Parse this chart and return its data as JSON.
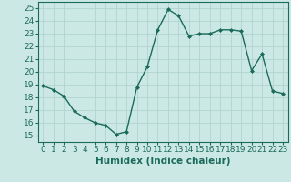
{
  "x": [
    0,
    1,
    2,
    3,
    4,
    5,
    6,
    7,
    8,
    9,
    10,
    11,
    12,
    13,
    14,
    15,
    16,
    17,
    18,
    19,
    20,
    21,
    22,
    23
  ],
  "y": [
    18.9,
    18.6,
    18.1,
    16.9,
    16.4,
    16.0,
    15.8,
    15.1,
    15.3,
    18.8,
    20.4,
    23.3,
    24.9,
    24.4,
    22.8,
    23.0,
    23.0,
    23.3,
    23.3,
    23.2,
    20.1,
    21.4,
    18.5,
    18.3
  ],
  "line_color": "#1a6b5a",
  "marker": "D",
  "marker_size": 2.0,
  "linewidth": 1.0,
  "xlabel": "Humidex (Indice chaleur)",
  "xlim": [
    -0.5,
    23.5
  ],
  "ylim": [
    14.5,
    25.5
  ],
  "yticks": [
    15,
    16,
    17,
    18,
    19,
    20,
    21,
    22,
    23,
    24,
    25
  ],
  "xticks": [
    0,
    1,
    2,
    3,
    4,
    5,
    6,
    7,
    8,
    9,
    10,
    11,
    12,
    13,
    14,
    15,
    16,
    17,
    18,
    19,
    20,
    21,
    22,
    23
  ],
  "xtick_labels": [
    "0",
    "1",
    "2",
    "3",
    "4",
    "5",
    "6",
    "7",
    "8",
    "9",
    "10",
    "11",
    "12",
    "13",
    "14",
    "15",
    "16",
    "17",
    "18",
    "19",
    "20",
    "21",
    "22",
    "23"
  ],
  "bg_color": "#cce8e4",
  "grid_color": "#b0d4ce",
  "text_color": "#1a6b5a",
  "tick_fontsize": 6.5,
  "xlabel_fontsize": 7.5
}
